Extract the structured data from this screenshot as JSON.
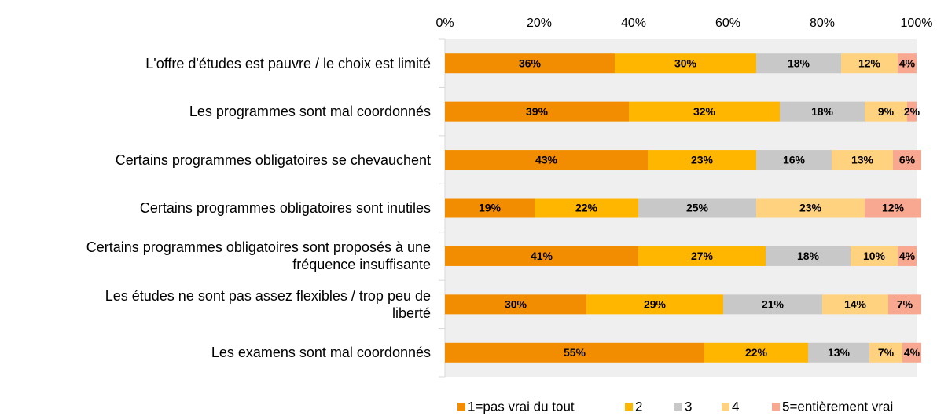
{
  "chart_data": {
    "type": "stacked-bar-horizontal",
    "categories": [
      "L'offre d'études est pauvre / le choix est limité",
      "Les programmes sont mal coordonnés",
      "Certains programmes obligatoires se chevauchent",
      "Certains programmes obligatoires sont inutiles",
      "Certains programmes obligatoires sont proposés à une\nfréquence insuffisante",
      "Les études ne sont pas assez flexibles / trop peu de\nliberté",
      "Les examens sont mal coordonnés"
    ],
    "series": [
      {
        "name": "1=pas vrai du tout",
        "color": "#f28c00",
        "values": [
          36,
          39,
          43,
          19,
          41,
          30,
          55
        ],
        "value_labels": [
          "36%",
          "39%",
          "43%",
          "19%",
          "41%",
          "30%",
          "55%"
        ]
      },
      {
        "name": "2",
        "color": "#ffb600",
        "values": [
          30,
          32,
          23,
          22,
          27,
          29,
          22
        ],
        "value_labels": [
          "30%",
          "32%",
          "23%",
          "22%",
          "27%",
          "29%",
          "22%"
        ]
      },
      {
        "name": "3",
        "color": "#c8c8c8",
        "values": [
          18,
          18,
          16,
          25,
          18,
          21,
          13
        ],
        "value_labels": [
          "18%",
          "18%",
          "16%",
          "25%",
          "18%",
          "21%",
          "13%"
        ]
      },
      {
        "name": "4",
        "color": "#ffd280",
        "values": [
          12,
          9,
          13,
          23,
          10,
          14,
          7
        ],
        "value_labels": [
          "12%",
          "9%",
          "13%",
          "23%",
          "10%",
          "14%",
          "7%"
        ]
      },
      {
        "name": "5=entièrement vrai",
        "color": "#f8a890",
        "values": [
          4,
          2,
          6,
          12,
          4,
          7,
          4
        ],
        "value_labels": [
          "4%",
          "2%",
          "6%",
          "12%",
          "4%",
          "7%",
          "4%"
        ]
      }
    ],
    "xlim": [
      0,
      100
    ],
    "xticks": [
      {
        "value": 0,
        "label": "0%"
      },
      {
        "value": 20,
        "label": "20%"
      },
      {
        "value": 40,
        "label": "40%"
      },
      {
        "value": 60,
        "label": "60%"
      },
      {
        "value": 80,
        "label": "80%"
      },
      {
        "value": 100,
        "label": "100%"
      }
    ],
    "legend": "bottom"
  }
}
